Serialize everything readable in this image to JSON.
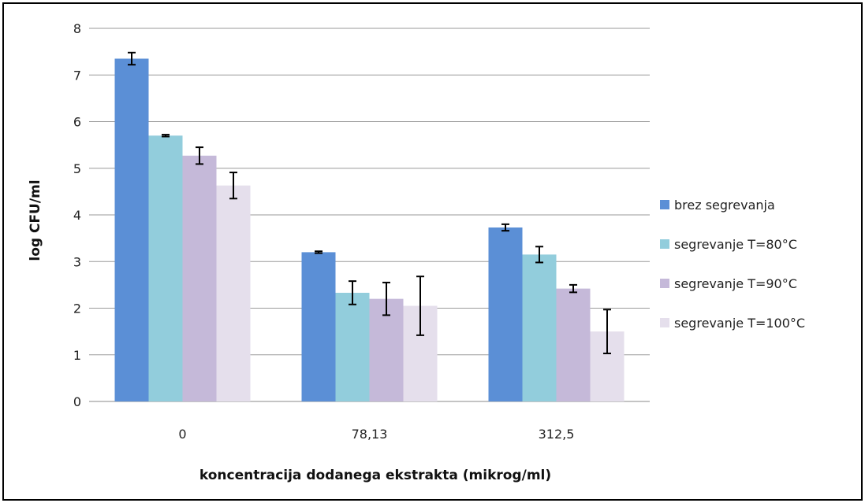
{
  "chart_data": {
    "type": "bar",
    "title": "",
    "xlabel": "koncentracija dodanega ekstrakta (mikrog/ml)",
    "ylabel": "log CFU/ml",
    "ylim": [
      0,
      8
    ],
    "yticks": [
      0,
      1,
      2,
      3,
      4,
      5,
      6,
      7,
      8
    ],
    "grid": true,
    "legend_position": "right",
    "categories": [
      "0",
      "78,13",
      "312,5"
    ],
    "series": [
      {
        "name": "brez segrevanja",
        "color": "#5b8fd6",
        "values": [
          7.35,
          3.2,
          3.73
        ],
        "error": [
          0.13,
          0.02,
          0.07
        ]
      },
      {
        "name": "segrevanje T=80°C",
        "color": "#92cddc",
        "values": [
          5.7,
          2.33,
          3.15
        ],
        "error": [
          0.02,
          0.25,
          0.17
        ]
      },
      {
        "name": "segrevanje T=90°C",
        "color": "#c5b9d9",
        "values": [
          5.27,
          2.2,
          2.42
        ],
        "error": [
          0.18,
          0.35,
          0.08
        ]
      },
      {
        "name": "segrevanje T=100°C",
        "color": "#e5dfec",
        "values": [
          4.63,
          2.05,
          1.5
        ],
        "error": [
          0.28,
          0.63,
          0.47
        ]
      }
    ]
  }
}
